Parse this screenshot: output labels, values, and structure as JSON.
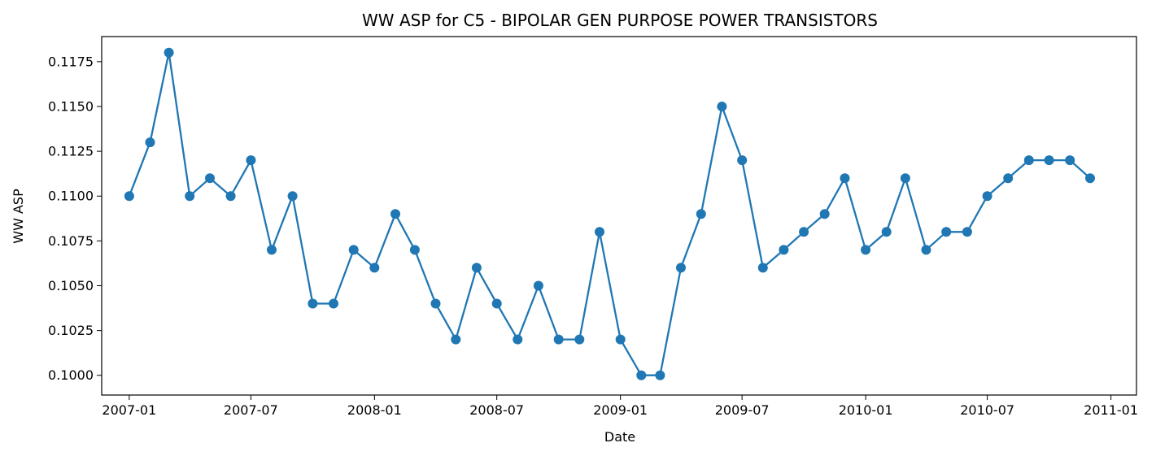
{
  "chart_data": {
    "type": "line",
    "title": "WW ASP for C5 - BIPOLAR GEN PURPOSE POWER TRANSISTORS",
    "xlabel": "Date",
    "ylabel": "WW ASP",
    "x_ticks": [
      "2007-01",
      "2007-07",
      "2008-01",
      "2008-07",
      "2009-01",
      "2009-07",
      "2010-01",
      "2010-07",
      "2011-01"
    ],
    "y_ticks": [
      "0.1000",
      "0.1025",
      "0.1050",
      "0.1075",
      "0.1100",
      "0.1125",
      "0.1150",
      "0.1175"
    ],
    "ylim": [
      0.0989,
      0.1189
    ],
    "xlim": [
      "2006-11-21",
      "2011-02-08"
    ],
    "grid": false,
    "color": "#1f77b4",
    "series": [
      {
        "x": [
          "2007-01-01",
          "2007-02-01",
          "2007-03-01",
          "2007-04-01",
          "2007-05-01",
          "2007-06-01",
          "2007-07-01",
          "2007-08-01",
          "2007-09-01",
          "2007-10-01",
          "2007-11-01",
          "2007-12-01",
          "2008-01-01",
          "2008-02-01",
          "2008-03-01",
          "2008-04-01",
          "2008-05-01",
          "2008-06-01",
          "2008-07-01",
          "2008-08-01",
          "2008-09-01",
          "2008-10-01",
          "2008-11-01",
          "2008-12-01",
          "2009-01-01",
          "2009-02-01",
          "2009-03-01",
          "2009-04-01",
          "2009-05-01",
          "2009-06-01",
          "2009-07-01",
          "2009-08-01",
          "2009-09-01",
          "2009-10-01",
          "2009-11-01",
          "2009-12-01",
          "2010-01-01",
          "2010-02-01",
          "2010-03-01",
          "2010-04-01",
          "2010-05-01",
          "2010-06-01",
          "2010-07-01",
          "2010-08-01",
          "2010-09-01",
          "2010-10-01",
          "2010-11-01",
          "2010-12-01"
        ],
        "values": [
          0.11,
          0.113,
          0.118,
          0.11,
          0.111,
          0.11,
          0.112,
          0.107,
          0.11,
          0.104,
          0.104,
          0.107,
          0.106,
          0.109,
          0.107,
          0.104,
          0.102,
          0.106,
          0.104,
          0.102,
          0.105,
          0.102,
          0.102,
          0.108,
          0.102,
          0.1,
          0.1,
          0.106,
          0.109,
          0.115,
          0.112,
          0.106,
          0.107,
          0.108,
          0.109,
          0.111,
          0.107,
          0.108,
          0.111,
          0.107,
          0.108,
          0.108,
          0.11,
          0.111,
          0.112,
          0.112,
          0.112,
          0.111
        ]
      }
    ]
  }
}
